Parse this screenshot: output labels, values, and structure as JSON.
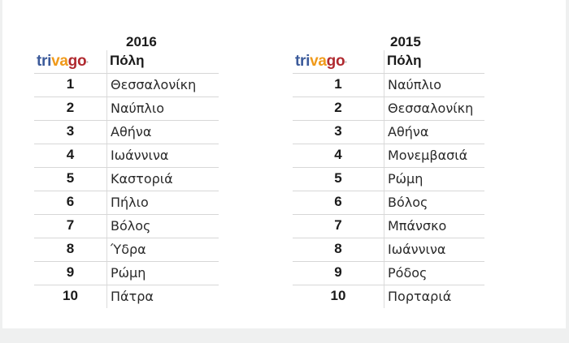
{
  "tables": [
    {
      "year": "2016",
      "logo": {
        "part1": "tri",
        "part2": "va",
        "part3": "go"
      },
      "city_header": "Πόλη",
      "rows": [
        {
          "rank": "1",
          "city": "Θεσσαλονίκη"
        },
        {
          "rank": "2",
          "city": "Ναύπλιο"
        },
        {
          "rank": "3",
          "city": "Αθήνα"
        },
        {
          "rank": "4",
          "city": "Ιωάννινα"
        },
        {
          "rank": "5",
          "city": "Καστοριά"
        },
        {
          "rank": "6",
          "city": "Πήλιο"
        },
        {
          "rank": "7",
          "city": "Βόλος"
        },
        {
          "rank": "8",
          "city": "Ύδρα"
        },
        {
          "rank": "9",
          "city": "Ρώμη"
        },
        {
          "rank": "10",
          "city": "Πάτρα"
        }
      ]
    },
    {
      "year": "2015",
      "logo": {
        "part1": "tri",
        "part2": "va",
        "part3": "go"
      },
      "city_header": "Πόλη",
      "rows": [
        {
          "rank": "1",
          "city": "Ναύπλιο"
        },
        {
          "rank": "2",
          "city": "Θεσσαλονίκη"
        },
        {
          "rank": "3",
          "city": "Αθήνα"
        },
        {
          "rank": "4",
          "city": "Μονεμβασιά"
        },
        {
          "rank": "5",
          "city": "Ρώμη"
        },
        {
          "rank": "6",
          "city": "Βόλος"
        },
        {
          "rank": "7",
          "city": "Μπάνσκο"
        },
        {
          "rank": "8",
          "city": "Ιωάννινα"
        },
        {
          "rank": "9",
          "city": "Ρόδος"
        },
        {
          "rank": "10",
          "city": "Πορταριά"
        }
      ]
    }
  ],
  "colors": {
    "logo_blue": "#3b5a9a",
    "logo_orange": "#f09a1a",
    "logo_red": "#b02a30",
    "background": "#eff0f0"
  }
}
